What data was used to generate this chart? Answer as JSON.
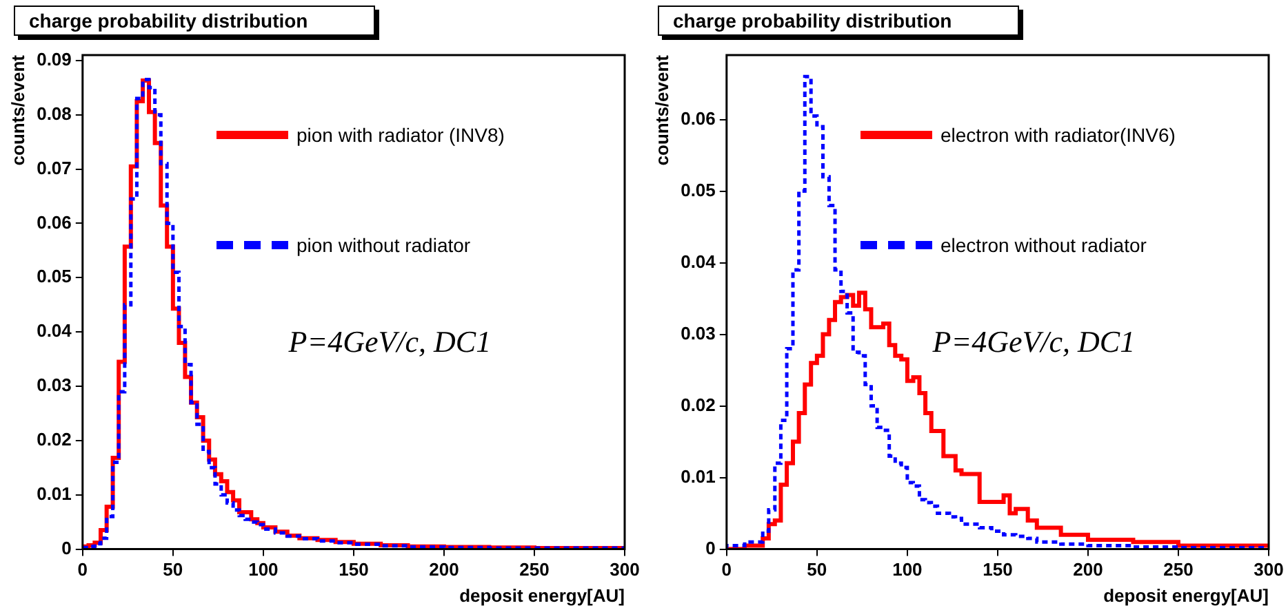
{
  "chart_data": [
    {
      "type": "step",
      "title": "charge probability distribution",
      "xlabel": "deposit energy[AU]",
      "ylabel": "counts/event",
      "xlim": [
        0,
        300
      ],
      "xticks": [
        0,
        50,
        100,
        150,
        200,
        250,
        300
      ],
      "ylim": [
        0,
        0.091
      ],
      "yticks": [
        0,
        0.01,
        0.02,
        0.03,
        0.04,
        0.05,
        0.06,
        0.07,
        0.08,
        0.09
      ],
      "grid": false,
      "legend": "top right",
      "annotations": [
        "P=4GeV/c, DC1"
      ],
      "series": [
        {
          "name": "pion with radiator (INV8)",
          "color": "#ff0000",
          "line_style": "solid",
          "x": [
            0,
            3.3,
            6.7,
            10,
            13.3,
            16.7,
            20,
            23.3,
            26.7,
            30,
            33.3,
            36.7,
            40,
            43.3,
            46.7,
            50,
            53.3,
            56.7,
            60,
            63.3,
            66.7,
            70,
            73.3,
            76.7,
            80,
            83.3,
            86.7,
            90,
            93.3,
            96.7,
            100,
            106.7,
            113.3,
            120,
            130,
            140,
            150,
            165,
            180,
            200,
            225,
            250,
            275,
            300
          ],
          "values": [
            0.0005,
            0.0005,
            0.0007,
            0.0012,
            0.0035,
            0.0078,
            0.0168,
            0.0345,
            0.0557,
            0.0705,
            0.0825,
            0.0863,
            0.0805,
            0.0748,
            0.0633,
            0.0557,
            0.0443,
            0.038,
            0.0317,
            0.027,
            0.0243,
            0.02,
            0.0165,
            0.0138,
            0.0125,
            0.0105,
            0.009,
            0.0068,
            0.0068,
            0.0055,
            0.0048,
            0.004,
            0.0032,
            0.0025,
            0.002,
            0.0017,
            0.0013,
            0.001,
            0.0007,
            0.0005,
            0.0004,
            0.0003,
            0.0002,
            0.0002
          ]
        },
        {
          "name": "pion without radiator",
          "color": "#0000ff",
          "line_style": "dashed",
          "x": [
            0,
            3.3,
            6.7,
            10,
            13.3,
            16.7,
            20,
            23.3,
            26.7,
            30,
            33.3,
            36.7,
            40,
            43.3,
            46.7,
            50,
            53.3,
            56.7,
            60,
            63.3,
            66.7,
            70,
            73.3,
            76.7,
            80,
            83.3,
            86.7,
            90,
            93.3,
            96.7,
            100,
            106.7,
            113.3,
            120,
            130,
            140,
            150,
            165,
            180,
            200,
            225,
            250,
            275,
            300
          ],
          "values": [
            0.0003,
            0.0003,
            0.0005,
            0.001,
            0.002,
            0.006,
            0.016,
            0.029,
            0.045,
            0.0645,
            0.083,
            0.0865,
            0.085,
            0.08,
            0.071,
            0.06,
            0.051,
            0.041,
            0.034,
            0.027,
            0.023,
            0.018,
            0.015,
            0.012,
            0.01,
            0.0085,
            0.0072,
            0.0062,
            0.0055,
            0.005,
            0.0045,
            0.0037,
            0.003,
            0.0024,
            0.0019,
            0.0015,
            0.0012,
            0.0009,
            0.0006,
            0.0004,
            0.0003,
            0.0002,
            0.0002,
            0.0002
          ]
        }
      ]
    },
    {
      "type": "step",
      "title": "charge probability distribution",
      "xlabel": "deposit energy[AU]",
      "ylabel": "counts/event",
      "xlim": [
        0,
        300
      ],
      "xticks": [
        0,
        50,
        100,
        150,
        200,
        250,
        300
      ],
      "ylim": [
        0,
        0.069
      ],
      "yticks": [
        0,
        0.01,
        0.02,
        0.03,
        0.04,
        0.05,
        0.06
      ],
      "grid": false,
      "legend": "top right",
      "annotations": [
        "P=4GeV/c, DC1"
      ],
      "series": [
        {
          "name": "electron with radiator(INV6)",
          "color": "#ff0000",
          "line_style": "solid",
          "x": [
            0,
            10,
            20,
            23.3,
            26.7,
            30,
            33.3,
            36.7,
            40,
            43.3,
            46.7,
            50,
            53.3,
            56.7,
            60,
            63.3,
            66.7,
            70,
            73.3,
            76.7,
            80,
            83.3,
            86.7,
            90,
            93.3,
            96.7,
            100,
            103.3,
            106.7,
            110,
            113.3,
            116.7,
            120,
            123.3,
            126.7,
            130,
            140,
            146.7,
            153.3,
            156.7,
            160,
            166.7,
            171.7,
            185,
            200,
            225,
            250,
            275,
            300
          ],
          "values": [
            0,
            0,
            0.0005,
            0.0015,
            0.0035,
            0.004,
            0.009,
            0.012,
            0.015,
            0.019,
            0.023,
            0.026,
            0.027,
            0.03,
            0.032,
            0.0345,
            0.0352,
            0.0355,
            0.034,
            0.0358,
            0.0335,
            0.031,
            0.031,
            0.0315,
            0.0285,
            0.027,
            0.0265,
            0.0235,
            0.024,
            0.0218,
            0.019,
            0.0165,
            0.0165,
            0.013,
            0.013,
            0.011,
            0.0105,
            0.0066,
            0.0066,
            0.0075,
            0.005,
            0.0056,
            0.004,
            0.003,
            0.002,
            0.0013,
            0.001,
            0.0005,
            0.0005
          ]
        },
        {
          "name": "electron without radiator",
          "color": "#0000ff",
          "line_style": "dashed",
          "x": [
            0,
            10,
            20,
            23.3,
            26.7,
            30,
            33.3,
            36.7,
            40,
            43.3,
            46.7,
            50,
            53.3,
            56.7,
            60,
            63.3,
            66.7,
            70,
            73.3,
            76.7,
            80,
            83.3,
            86.7,
            90,
            93.3,
            96.7,
            100,
            103.3,
            106.7,
            110,
            113.3,
            116.7,
            120,
            123.3,
            126.7,
            130,
            140,
            146.7,
            153.3,
            156.7,
            160,
            166.7,
            171.7,
            185,
            200,
            225,
            250,
            275,
            300
          ],
          "values": [
            0,
            0.0005,
            0.001,
            0.0025,
            0.0055,
            0.012,
            0.018,
            0.028,
            0.039,
            0.05,
            0.066,
            0.0605,
            0.059,
            0.052,
            0.048,
            0.039,
            0.036,
            0.033,
            0.0275,
            0.027,
            0.023,
            0.02,
            0.017,
            0.0166,
            0.013,
            0.012,
            0.0114,
            0.0093,
            0.0088,
            0.0069,
            0.0065,
            0.006,
            0.005,
            0.005,
            0.0045,
            0.0043,
            0.0035,
            0.003,
            0.0025,
            0.002,
            0.002,
            0.0018,
            0.0015,
            0.001,
            0.0007,
            0.0005,
            0.0003,
            0.0002,
            0.0002
          ]
        }
      ]
    }
  ]
}
